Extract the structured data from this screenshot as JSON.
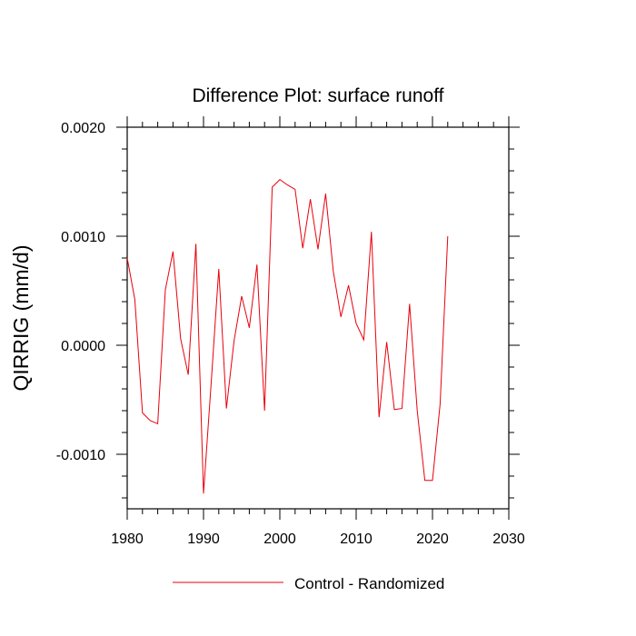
{
  "chart_data": {
    "type": "line",
    "title": "Difference Plot: surface runoff",
    "xlabel": "",
    "ylabel": "QIRRIG  (mm/d)",
    "xlim": [
      1980,
      2030
    ],
    "ylim": [
      -0.0015,
      0.002
    ],
    "xticks": [
      1980,
      1990,
      2000,
      2010,
      2020,
      2030
    ],
    "yticks": [
      -0.001,
      0.0,
      0.001,
      0.002
    ],
    "xtick_labels": [
      "1980",
      "1990",
      "2000",
      "2010",
      "2020",
      "2030"
    ],
    "ytick_labels": [
      "-0.0010",
      "0.0000",
      "0.0010",
      "0.0020"
    ],
    "grid": false,
    "legend": "bottom-center",
    "series": [
      {
        "name": "Control - Randomized",
        "color": "#e8000b",
        "x": [
          1980,
          1981,
          1982,
          1983,
          1984,
          1985,
          1986,
          1987,
          1988,
          1989,
          1990,
          1991,
          1992,
          1993,
          1994,
          1995,
          1996,
          1997,
          1998,
          1999,
          2000,
          2001,
          2002,
          2003,
          2004,
          2005,
          2006,
          2007,
          2008,
          2009,
          2010,
          2011,
          2012,
          2013,
          2014,
          2015,
          2016,
          2017,
          2018,
          2019,
          2020,
          2021,
          2022
        ],
        "values": [
          0.0008,
          0.00042,
          -0.00062,
          -0.00069,
          -0.00072,
          0.00051,
          0.00086,
          6e-05,
          -0.00027,
          0.00093,
          -0.00136,
          -0.00035,
          0.0007,
          -0.00058,
          4e-05,
          0.00045,
          0.00016,
          0.00074,
          -0.0006,
          0.00145,
          0.00152,
          0.00147,
          0.00143,
          0.00089,
          0.00134,
          0.00088,
          0.00139,
          0.00068,
          0.00026,
          0.00055,
          0.0002,
          5e-05,
          0.00104,
          -0.00066,
          3e-05,
          -0.00059,
          -0.00058,
          0.00038,
          -0.0006,
          -0.00124,
          -0.00124,
          -0.00054,
          0.001
        ]
      }
    ]
  }
}
